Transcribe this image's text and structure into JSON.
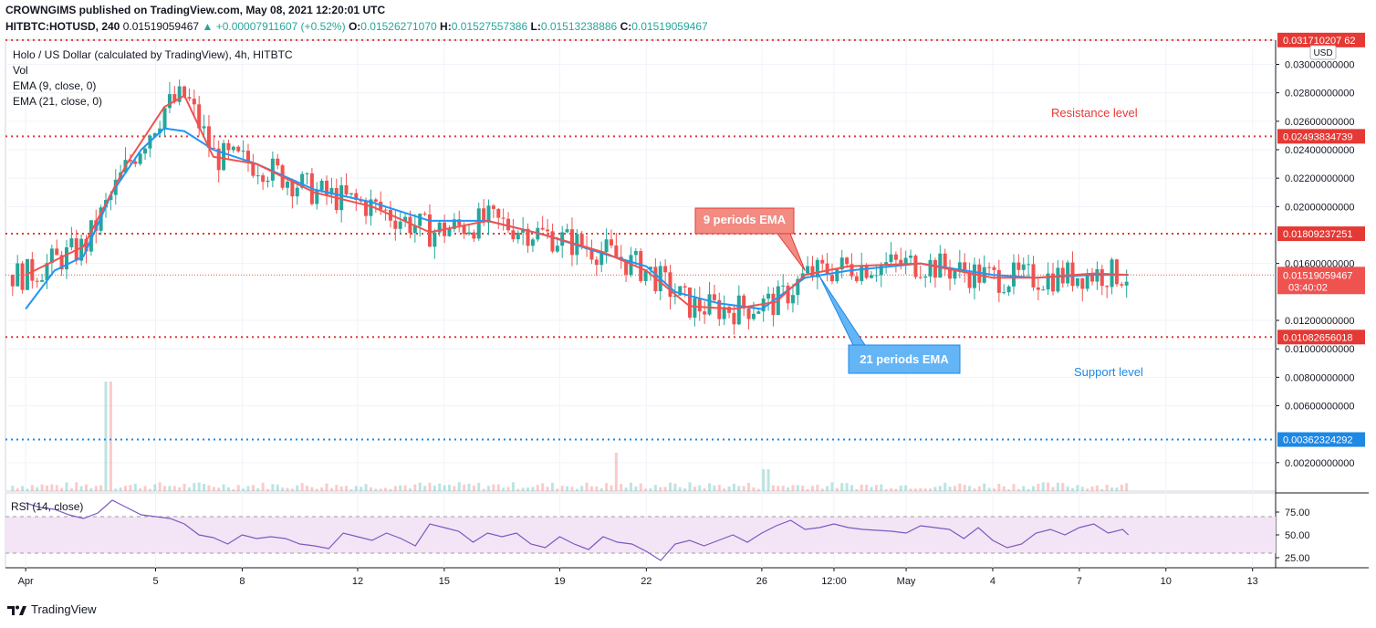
{
  "header": {
    "publisher_line": "CROWNGIMS published on TradingView.com, May 08, 2021 12:20:01 UTC",
    "symbol": "HITBTC:HOTUSD, 240",
    "price": "0.01519059467",
    "change_arrow": "▲",
    "change": "+0.00007911607 (+0.52%)",
    "o_label": "O:",
    "o_value": "0.01526271070",
    "h_label": "H:",
    "h_value": "0.01527557386",
    "l_label": "L:",
    "l_value": "0.01513238886",
    "c_label": "C:",
    "c_value": "0.01519059467"
  },
  "legend": {
    "title": "Holo / US Dollar (calculated by TradingView), 4h, HITBTC",
    "vol": "Vol",
    "ema9": "EMA (9, close, 0)",
    "ema21": "EMA (21, close, 0)",
    "rsi": "RSI (14, close)"
  },
  "annotations": {
    "resistance": "Resistance level",
    "support": "Support level",
    "ema9_callout": "9 periods EMA",
    "ema21_callout": "21 periods EMA"
  },
  "currency_badge": "USD",
  "footer": {
    "brand": "TradingView"
  },
  "colors": {
    "up": "#26a69a",
    "down": "#ef5350",
    "ema9": "#ef5350",
    "ema21": "#2196f3",
    "level_red": "#e53935",
    "level_blue": "#1e88e5",
    "rsi_line": "#7e57c2",
    "rsi_band": "#f3e5f5"
  },
  "chart_data": {
    "type": "line",
    "title": "Holo / US Dollar (calculated by TradingView), 4h, HITBTC",
    "ylim": [
      0.0,
      0.0317
    ],
    "y_ticks": [
      "0.03000000000",
      "0.02800000000",
      "0.02600000000",
      "0.02400000000",
      "0.02200000000",
      "0.02000000000",
      "0.01600000000",
      "0.01200000000",
      "0.01000000000",
      "0.00800000000",
      "0.00600000000",
      "0.00200000000"
    ],
    "y_tick_values": [
      0.03,
      0.028,
      0.026,
      0.024,
      0.022,
      0.02,
      0.016,
      0.012,
      0.01,
      0.008,
      0.006,
      0.002
    ],
    "x_ticks": [
      "Apr",
      "5",
      "8",
      "12",
      "15",
      "19",
      "22",
      "26",
      "12:00",
      "May",
      "4",
      "7",
      "10",
      "13"
    ],
    "x_tick_days": [
      0,
      4.5,
      7.5,
      11.5,
      14.5,
      18.5,
      21.5,
      25.5,
      28.0,
      30.5,
      33.5,
      36.5,
      39.5,
      42.5
    ],
    "levels": [
      {
        "value": 0.03171020762,
        "label": "0.031710207 62",
        "color": "#e53935"
      },
      {
        "value": 0.02493834739,
        "label": "0.02493834739",
        "color": "#e53935"
      },
      {
        "value": 0.01809237251,
        "label": "0.01809237251",
        "color": "#e53935"
      },
      {
        "value": 0.01082656018,
        "label": "0.01082656018",
        "color": "#e53935"
      },
      {
        "value": 0.00362324292,
        "label": "0.00362324292",
        "color": "#1e88e5"
      }
    ],
    "last_price": {
      "value": 0.01519059467,
      "label": "0.01519059467",
      "timer": "03:40:02"
    },
    "series": [
      {
        "name": "EMA (9, close, 0)",
        "x": [
          0,
          2,
          3.5,
          4.8,
          5.5,
          6.5,
          8,
          10,
          12,
          14,
          16,
          18,
          20,
          21.5,
          23,
          24.5,
          26,
          27,
          28.5,
          31,
          33.5,
          35,
          37,
          38.2
        ],
        "values": [
          0.0152,
          0.0172,
          0.023,
          0.027,
          0.0278,
          0.0235,
          0.023,
          0.021,
          0.02,
          0.0182,
          0.019,
          0.018,
          0.0168,
          0.0155,
          0.013,
          0.0128,
          0.0133,
          0.0152,
          0.0158,
          0.016,
          0.015,
          0.015,
          0.0153,
          0.0152
        ]
      },
      {
        "name": "EMA (21, close, 0)",
        "x": [
          0,
          1,
          2,
          3,
          4,
          4.8,
          5.5,
          6.5,
          8,
          10,
          12,
          14,
          16,
          18,
          20,
          21.5,
          22.5,
          24,
          25.5,
          27,
          28.5,
          31,
          33.5,
          35,
          37,
          38.2
        ],
        "values": [
          0.0128,
          0.0155,
          0.0165,
          0.021,
          0.024,
          0.0255,
          0.0253,
          0.024,
          0.023,
          0.0212,
          0.0203,
          0.019,
          0.019,
          0.018,
          0.0167,
          0.0158,
          0.014,
          0.0132,
          0.0128,
          0.015,
          0.0155,
          0.016,
          0.0152,
          0.015,
          0.0152,
          0.0152
        ]
      }
    ],
    "rsi": {
      "ticks": [
        "75.00",
        "50.00",
        "25.00"
      ],
      "tick_values": [
        75,
        50,
        25
      ],
      "band": [
        30,
        70
      ],
      "x": [
        0,
        0.5,
        1,
        1.5,
        2,
        2.5,
        3,
        3.5,
        4,
        4.5,
        5,
        5.5,
        6,
        6.5,
        7,
        7.5,
        8,
        8.5,
        9,
        9.5,
        10,
        10.5,
        11,
        11.5,
        12,
        12.5,
        13,
        13.5,
        14,
        14.5,
        15,
        15.5,
        16,
        16.5,
        17,
        17.5,
        18,
        18.5,
        19,
        19.5,
        20,
        20.5,
        21,
        21.5,
        22,
        22.5,
        23,
        23.5,
        24,
        24.5,
        25,
        25.5,
        26,
        26.5,
        27,
        27.5,
        28,
        28.5,
        29,
        29.5,
        30,
        30.5,
        31,
        31.5,
        32,
        32.5,
        33,
        33.5,
        34,
        34.5,
        35,
        35.5,
        36,
        36.5,
        37,
        37.5,
        38,
        38.2
      ],
      "values": [
        85,
        80,
        78,
        72,
        68,
        74,
        88,
        80,
        72,
        70,
        68,
        62,
        50,
        47,
        40,
        50,
        46,
        48,
        46,
        40,
        38,
        35,
        52,
        48,
        44,
        52,
        46,
        38,
        62,
        58,
        54,
        42,
        52,
        48,
        52,
        40,
        36,
        48,
        40,
        34,
        48,
        42,
        40,
        32,
        22,
        40,
        44,
        38,
        44,
        50,
        42,
        52,
        60,
        66,
        56,
        58,
        62,
        58,
        56,
        55,
        54,
        52,
        60,
        58,
        56,
        46,
        58,
        44,
        36,
        40,
        52,
        56,
        50,
        58,
        62,
        52,
        56,
        50
      ]
    }
  }
}
